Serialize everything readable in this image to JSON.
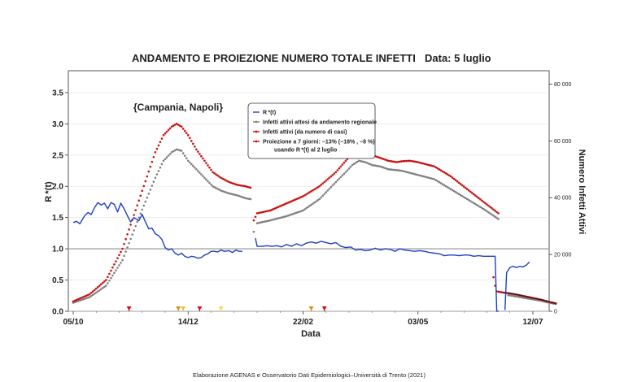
{
  "chart_data": {
    "type": "line",
    "title": "ANDAMENTO E PROIEZIONE NUMERO TOTALE INFETTI",
    "date_label": "Data: 5 luglio",
    "region_label": "{Campania, Napoli}",
    "xlabel": "Data",
    "ylabel_left": "R *(t)",
    "ylabel_right": "Numero Infetti Attivi",
    "footer": "Elaborazione AGENAS e Osservatorio Dati Epidemiologici–Università di Trento (2021)",
    "x_ticks": [
      "05/10",
      "14/12",
      "22/02",
      "03/05",
      "12/07"
    ],
    "y_left_ticks": [
      "0.0",
      "0.5",
      "1.0",
      "1.5",
      "2.0",
      "2.5",
      "3.0",
      "3.5"
    ],
    "y_right_ticks": [
      "0",
      "20 000",
      "40 000",
      "60 000",
      "80 000"
    ],
    "ylim_left": [
      0,
      3.85
    ],
    "ylim_right": [
      0,
      84700
    ],
    "reference_line_y": 1.0,
    "legend": [
      {
        "label": "R *(t)",
        "color": "#1f3fbf",
        "marker": "line"
      },
      {
        "label": "Infetti attivi attesi da andamento regionale",
        "color": "#808080",
        "marker": "dot"
      },
      {
        "label": "Infetti attivi (da numero di casi)",
        "color": "#cc1010",
        "marker": "dot"
      },
      {
        "label": "Proiezione a 7 giorni: −13% (−18% , −8 %)",
        "label2": "usando R *(t) al 2 luglio",
        "color": "#cc1010",
        "marker": "dot"
      }
    ],
    "series": [
      {
        "name": "R *(t)",
        "axis": "left",
        "color": "#1f3fbf",
        "points": [
          [
            0,
            1.42
          ],
          [
            2,
            1.44
          ],
          [
            4,
            1.4
          ],
          [
            7,
            1.53
          ],
          [
            9,
            1.58
          ],
          [
            11,
            1.55
          ],
          [
            13,
            1.66
          ],
          [
            15,
            1.74
          ],
          [
            17,
            1.7
          ],
          [
            19,
            1.73
          ],
          [
            21,
            1.64
          ],
          [
            23,
            1.74
          ],
          [
            25,
            1.71
          ],
          [
            27,
            1.59
          ],
          [
            29,
            1.73
          ],
          [
            31,
            1.64
          ],
          [
            33,
            1.53
          ],
          [
            35,
            1.43
          ],
          [
            37,
            1.5
          ],
          [
            40,
            1.45
          ],
          [
            42,
            1.55
          ],
          [
            44,
            1.43
          ],
          [
            46,
            1.32
          ],
          [
            48,
            1.33
          ],
          [
            50,
            1.24
          ],
          [
            52,
            1.21
          ],
          [
            54,
            1.15
          ],
          [
            56,
            1.02
          ],
          [
            58,
            0.98
          ],
          [
            60,
            1.0
          ],
          [
            62,
            0.93
          ],
          [
            64,
            0.9
          ],
          [
            66,
            0.93
          ],
          [
            68,
            0.88
          ],
          [
            70,
            0.86
          ],
          [
            72,
            0.88
          ],
          [
            74,
            0.87
          ],
          [
            76,
            0.85
          ],
          [
            78,
            0.86
          ],
          [
            80,
            0.9
          ],
          [
            82,
            0.92
          ],
          [
            84,
            0.96
          ],
          [
            86,
            0.96
          ],
          [
            88,
            0.95
          ],
          [
            90,
            0.98
          ],
          [
            92,
            0.96
          ],
          [
            95,
            0.97
          ],
          [
            97,
            0.94
          ],
          [
            99,
            0.98
          ],
          [
            101,
            0.96
          ],
          [
            103,
            0.96
          ]
        ]
      },
      {
        "name": "R *(t) (dopo)",
        "axis": "left",
        "color": "#1f3fbf",
        "points": [
          [
            111,
            1.17
          ],
          [
            112,
            1.04
          ],
          [
            115,
            1.04
          ],
          [
            118,
            1.05
          ],
          [
            121,
            1.04
          ],
          [
            124,
            1.05
          ],
          [
            127,
            1.03
          ],
          [
            130,
            1.07
          ],
          [
            133,
            1.04
          ],
          [
            136,
            1.08
          ],
          [
            139,
            1.05
          ],
          [
            142,
            1.09
          ],
          [
            145,
            1.11
          ],
          [
            148,
            1.09
          ],
          [
            151,
            1.12
          ],
          [
            154,
            1.1
          ],
          [
            157,
            1.08
          ],
          [
            160,
            1.1
          ],
          [
            163,
            1.04
          ],
          [
            166,
            1.02
          ],
          [
            169,
            1.03
          ],
          [
            172,
            0.98
          ],
          [
            175,
            0.99
          ],
          [
            178,
            0.97
          ],
          [
            181,
            0.98
          ],
          [
            184,
            1.01
          ],
          [
            187,
            0.98
          ],
          [
            190,
            1.0
          ],
          [
            193,
            0.99
          ],
          [
            196,
            0.96
          ],
          [
            199,
            1.0
          ],
          [
            202,
            0.98
          ],
          [
            205,
            0.97
          ],
          [
            208,
            0.96
          ],
          [
            211,
            0.97
          ],
          [
            214,
            0.96
          ],
          [
            217,
            0.94
          ],
          [
            220,
            0.93
          ],
          [
            223,
            0.92
          ],
          [
            226,
            0.89
          ],
          [
            229,
            0.9
          ],
          [
            232,
            0.9
          ],
          [
            235,
            0.89
          ],
          [
            238,
            0.9
          ],
          [
            241,
            0.9
          ],
          [
            244,
            0.88
          ],
          [
            247,
            0.89
          ],
          [
            250,
            0.88
          ],
          [
            253,
            0.88
          ],
          [
            255,
            0.88
          ],
          [
            257,
            0.88
          ],
          [
            258,
            0.0
          ],
          [
            259,
            0.0
          ]
        ]
      },
      {
        "name": "R *(t) (finale)",
        "axis": "left",
        "color": "#1f3fbf",
        "points": [
          [
            263,
            0.02
          ],
          [
            264,
            0.62
          ],
          [
            266,
            0.7
          ],
          [
            268,
            0.72
          ],
          [
            270,
            0.7
          ],
          [
            272,
            0.72
          ],
          [
            274,
            0.71
          ],
          [
            276,
            0.74
          ],
          [
            278,
            0.79
          ]
        ]
      }
    ],
    "dot_series": [
      {
        "name": "Infetti attivi attesi da andamento regionale",
        "axis": "right",
        "color": "#808080",
        "segments": [
          [
            [
              0,
              3000
            ],
            [
              10,
              5000
            ],
            [
              20,
              9000
            ],
            [
              30,
              18000
            ],
            [
              40,
              33000
            ],
            [
              50,
              47000
            ],
            [
              55,
              53000
            ],
            [
              60,
              56000
            ],
            [
              63,
              57000
            ],
            [
              66,
              56500
            ],
            [
              70,
              53000
            ],
            [
              75,
              50000
            ],
            [
              80,
              47000
            ],
            [
              85,
              44000
            ],
            [
              90,
              42500
            ],
            [
              95,
              41500
            ],
            [
              100,
              40800
            ],
            [
              105,
              39800
            ],
            [
              108,
              39500
            ]
          ],
          [
            [
              110,
              28000
            ]
          ],
          [
            [
              112,
              31000
            ],
            [
              120,
              32000
            ],
            [
              130,
              33500
            ],
            [
              140,
              35500
            ],
            [
              150,
              39500
            ],
            [
              160,
              45500
            ],
            [
              166,
              49000
            ],
            [
              170,
              51500
            ],
            [
              174,
              53000
            ],
            [
              178,
              52500
            ],
            [
              182,
              51500
            ],
            [
              187,
              51000
            ],
            [
              192,
              50000
            ],
            [
              200,
              49500
            ],
            [
              210,
              48000
            ],
            [
              220,
              46500
            ],
            [
              230,
              43000
            ],
            [
              240,
              39500
            ],
            [
              250,
              36000
            ],
            [
              259,
              32500
            ]
          ],
          [
            [
              265,
              5700
            ],
            [
              270,
              5200
            ],
            [
              275,
              4700
            ],
            [
              280,
              4200
            ],
            [
              285,
              3700
            ],
            [
              290,
              3000
            ],
            [
              294,
              2600
            ]
          ]
        ]
      },
      {
        "name": "Infetti attivi (da numero di casi)",
        "axis": "right",
        "color": "#cc1010",
        "segments": [
          [
            [
              0,
              3500
            ],
            [
              10,
              6000
            ],
            [
              20,
              11000
            ],
            [
              30,
              22000
            ],
            [
              40,
              39000
            ],
            [
              50,
              56000
            ],
            [
              55,
              62000
            ],
            [
              60,
              65000
            ],
            [
              63,
              66000
            ],
            [
              66,
              65000
            ],
            [
              70,
              62000
            ],
            [
              75,
              57000
            ],
            [
              80,
              53000
            ],
            [
              85,
              49000
            ],
            [
              90,
              47000
            ],
            [
              95,
              45500
            ],
            [
              100,
              44500
            ],
            [
              105,
              44000
            ],
            [
              108,
              43500
            ]
          ],
          [
            [
              110,
              32000
            ],
            [
              112,
              34500
            ],
            [
              120,
              35500
            ],
            [
              130,
              38000
            ],
            [
              140,
              40500
            ],
            [
              150,
              44000
            ],
            [
              160,
              49000
            ],
            [
              166,
              53000
            ],
            [
              170,
              55500
            ],
            [
              174,
              57000
            ],
            [
              178,
              56000
            ],
            [
              182,
              55000
            ],
            [
              187,
              54000
            ],
            [
              192,
              53000
            ],
            [
              197,
              52500
            ],
            [
              200,
              52800
            ],
            [
              205,
              53000
            ],
            [
              210,
              52500
            ],
            [
              220,
              51000
            ],
            [
              230,
              47500
            ],
            [
              240,
              43000
            ],
            [
              250,
              38500
            ],
            [
              259,
              34500
            ]
          ]
        ]
      },
      {
        "name": "Proiezione a 7 giorni",
        "axis": "right",
        "color": "#cc1010",
        "segments": [
          [
            [
              256,
              12000
            ],
            [
              257,
              9000
            ],
            [
              258,
              7000
            ],
            [
              262,
              6600
            ],
            [
              265,
              6400
            ],
            [
              270,
              5900
            ],
            [
              275,
              5300
            ],
            [
              280,
              4700
            ],
            [
              285,
              4100
            ],
            [
              290,
              3300
            ],
            [
              294,
              2800
            ]
          ]
        ]
      }
    ],
    "markers": [
      {
        "x": 34,
        "color": "#cc1010"
      },
      {
        "x": 64,
        "color": "#e08a18"
      },
      {
        "x": 67,
        "color": "#e8c230"
      },
      {
        "x": 77,
        "color": "#cc1010"
      },
      {
        "x": 90,
        "color": "#e8e050"
      },
      {
        "x": 145,
        "color": "#e08a18"
      },
      {
        "x": 153,
        "color": "#cc1010"
      }
    ]
  }
}
